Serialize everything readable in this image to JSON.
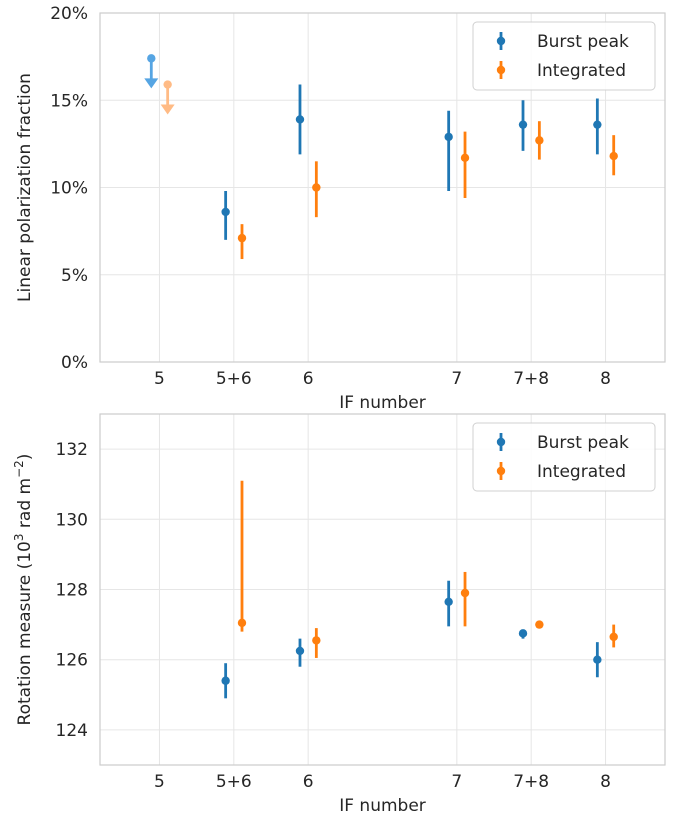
{
  "chart_data": [
    {
      "type": "scatter",
      "subtype": "errorbar",
      "xlabel": "IF number",
      "ylabel": "Linear polarization fraction",
      "categories": [
        "5",
        "5+6",
        "6",
        "7",
        "7+8",
        "8"
      ],
      "x": [
        5,
        5.5,
        6,
        7,
        7.5,
        8
      ],
      "ylim": [
        0,
        20
      ],
      "yticks": [
        0,
        5,
        10,
        15,
        20
      ],
      "ytick_labels": [
        "0%",
        "5%",
        "10%",
        "15%",
        "20%"
      ],
      "grid": true,
      "legend_position": "top-right",
      "series": [
        {
          "name": "Burst peak",
          "color": "#1f77b4",
          "points": [
            {
              "x": 5.5,
              "y": 8.6,
              "ylow": 7.0,
              "yhigh": 9.8
            },
            {
              "x": 6,
              "y": 13.9,
              "ylow": 11.9,
              "yhigh": 15.9
            },
            {
              "x": 7,
              "y": 12.9,
              "ylow": 9.8,
              "yhigh": 14.4
            },
            {
              "x": 7.5,
              "y": 13.6,
              "ylow": 12.1,
              "yhigh": 15.0
            },
            {
              "x": 8,
              "y": 13.6,
              "ylow": 11.9,
              "yhigh": 15.1
            }
          ],
          "upper_limits": [
            {
              "x": 5,
              "y": 17.4,
              "color": "#56a5e3"
            }
          ]
        },
        {
          "name": "Integrated",
          "color": "#ff7f0e",
          "points": [
            {
              "x": 5.5,
              "y": 7.1,
              "ylow": 5.9,
              "yhigh": 7.9
            },
            {
              "x": 6,
              "y": 10.0,
              "ylow": 8.3,
              "yhigh": 11.5
            },
            {
              "x": 7,
              "y": 11.7,
              "ylow": 9.4,
              "yhigh": 13.2
            },
            {
              "x": 7.5,
              "y": 12.7,
              "ylow": 11.6,
              "yhigh": 13.8
            },
            {
              "x": 8,
              "y": 11.8,
              "ylow": 10.7,
              "yhigh": 13.0
            }
          ],
          "upper_limits": [
            {
              "x": 5,
              "y": 15.9,
              "color": "#ffbb85"
            }
          ]
        }
      ]
    },
    {
      "type": "scatter",
      "subtype": "errorbar",
      "xlabel": "IF number",
      "ylabel": "Rotation measure (10",
      "ylabel_sup1": "3",
      "ylabel_mid": " rad m",
      "ylabel_sup2": "−2",
      "ylabel_end": ")",
      "categories": [
        "5",
        "5+6",
        "6",
        "7",
        "7+8",
        "8"
      ],
      "x": [
        5,
        5.5,
        6,
        7,
        7.5,
        8
      ],
      "ylim": [
        123,
        133
      ],
      "yticks": [
        124,
        126,
        128,
        130,
        132
      ],
      "ytick_labels": [
        "124",
        "126",
        "128",
        "130",
        "132"
      ],
      "grid": true,
      "legend_position": "top-right",
      "series": [
        {
          "name": "Burst peak",
          "color": "#1f77b4",
          "points": [
            {
              "x": 5.5,
              "y": 125.4,
              "ylow": 124.9,
              "yhigh": 125.9
            },
            {
              "x": 6,
              "y": 126.25,
              "ylow": 125.8,
              "yhigh": 126.6
            },
            {
              "x": 7,
              "y": 127.65,
              "ylow": 126.95,
              "yhigh": 128.25
            },
            {
              "x": 7.5,
              "y": 126.75,
              "ylow": 126.6,
              "yhigh": 126.85
            },
            {
              "x": 8,
              "y": 126.0,
              "ylow": 125.5,
              "yhigh": 126.5
            }
          ]
        },
        {
          "name": "Integrated",
          "color": "#ff7f0e",
          "points": [
            {
              "x": 5.5,
              "y": 127.05,
              "ylow": 126.8,
              "yhigh": 131.1
            },
            {
              "x": 6,
              "y": 126.55,
              "ylow": 126.05,
              "yhigh": 126.9
            },
            {
              "x": 7,
              "y": 127.9,
              "ylow": 126.95,
              "yhigh": 128.5
            },
            {
              "x": 7.5,
              "y": 127.0,
              "ylow": 126.9,
              "yhigh": 127.1
            },
            {
              "x": 8,
              "y": 126.65,
              "ylow": 126.35,
              "yhigh": 127.0
            }
          ]
        }
      ]
    }
  ]
}
